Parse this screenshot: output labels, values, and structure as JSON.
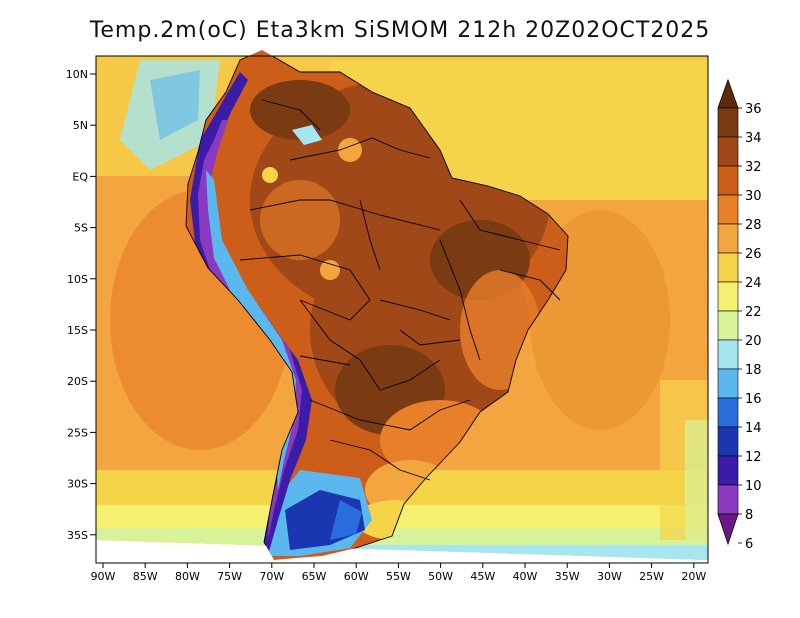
{
  "title": "Temp.2m(oC) Eta3km SiSMOM 212h 20Z02OCT2025",
  "map": {
    "lat_ticks": [
      "10N",
      "5N",
      "EQ",
      "5S",
      "10S",
      "15S",
      "20S",
      "25S",
      "30S",
      "35S"
    ],
    "lon_ticks": [
      "90W",
      "85W",
      "80W",
      "75W",
      "70W",
      "65W",
      "60W",
      "55W",
      "50W",
      "45W",
      "40W",
      "35W",
      "30W",
      "25W",
      "20W"
    ],
    "lon_range": [
      -90,
      -20
    ],
    "lat_range": [
      -38,
      11
    ]
  },
  "colorbar": {
    "labels": [
      "36",
      "34",
      "32",
      "30",
      "28",
      "26",
      "24",
      "22",
      "20",
      "18",
      "16",
      "14",
      "12",
      "10",
      "8",
      "6"
    ],
    "colors": [
      "#5a2a0a",
      "#7a3a12",
      "#a04818",
      "#cc5e1a",
      "#e8802a",
      "#f3a640",
      "#f5d44a",
      "#f6f070",
      "#d8f29a",
      "#a6e6f0",
      "#5bb8ee",
      "#2a6ede",
      "#1a36b0",
      "#3a1ca8",
      "#8a3ac0",
      "#6a1a88"
    ]
  }
}
